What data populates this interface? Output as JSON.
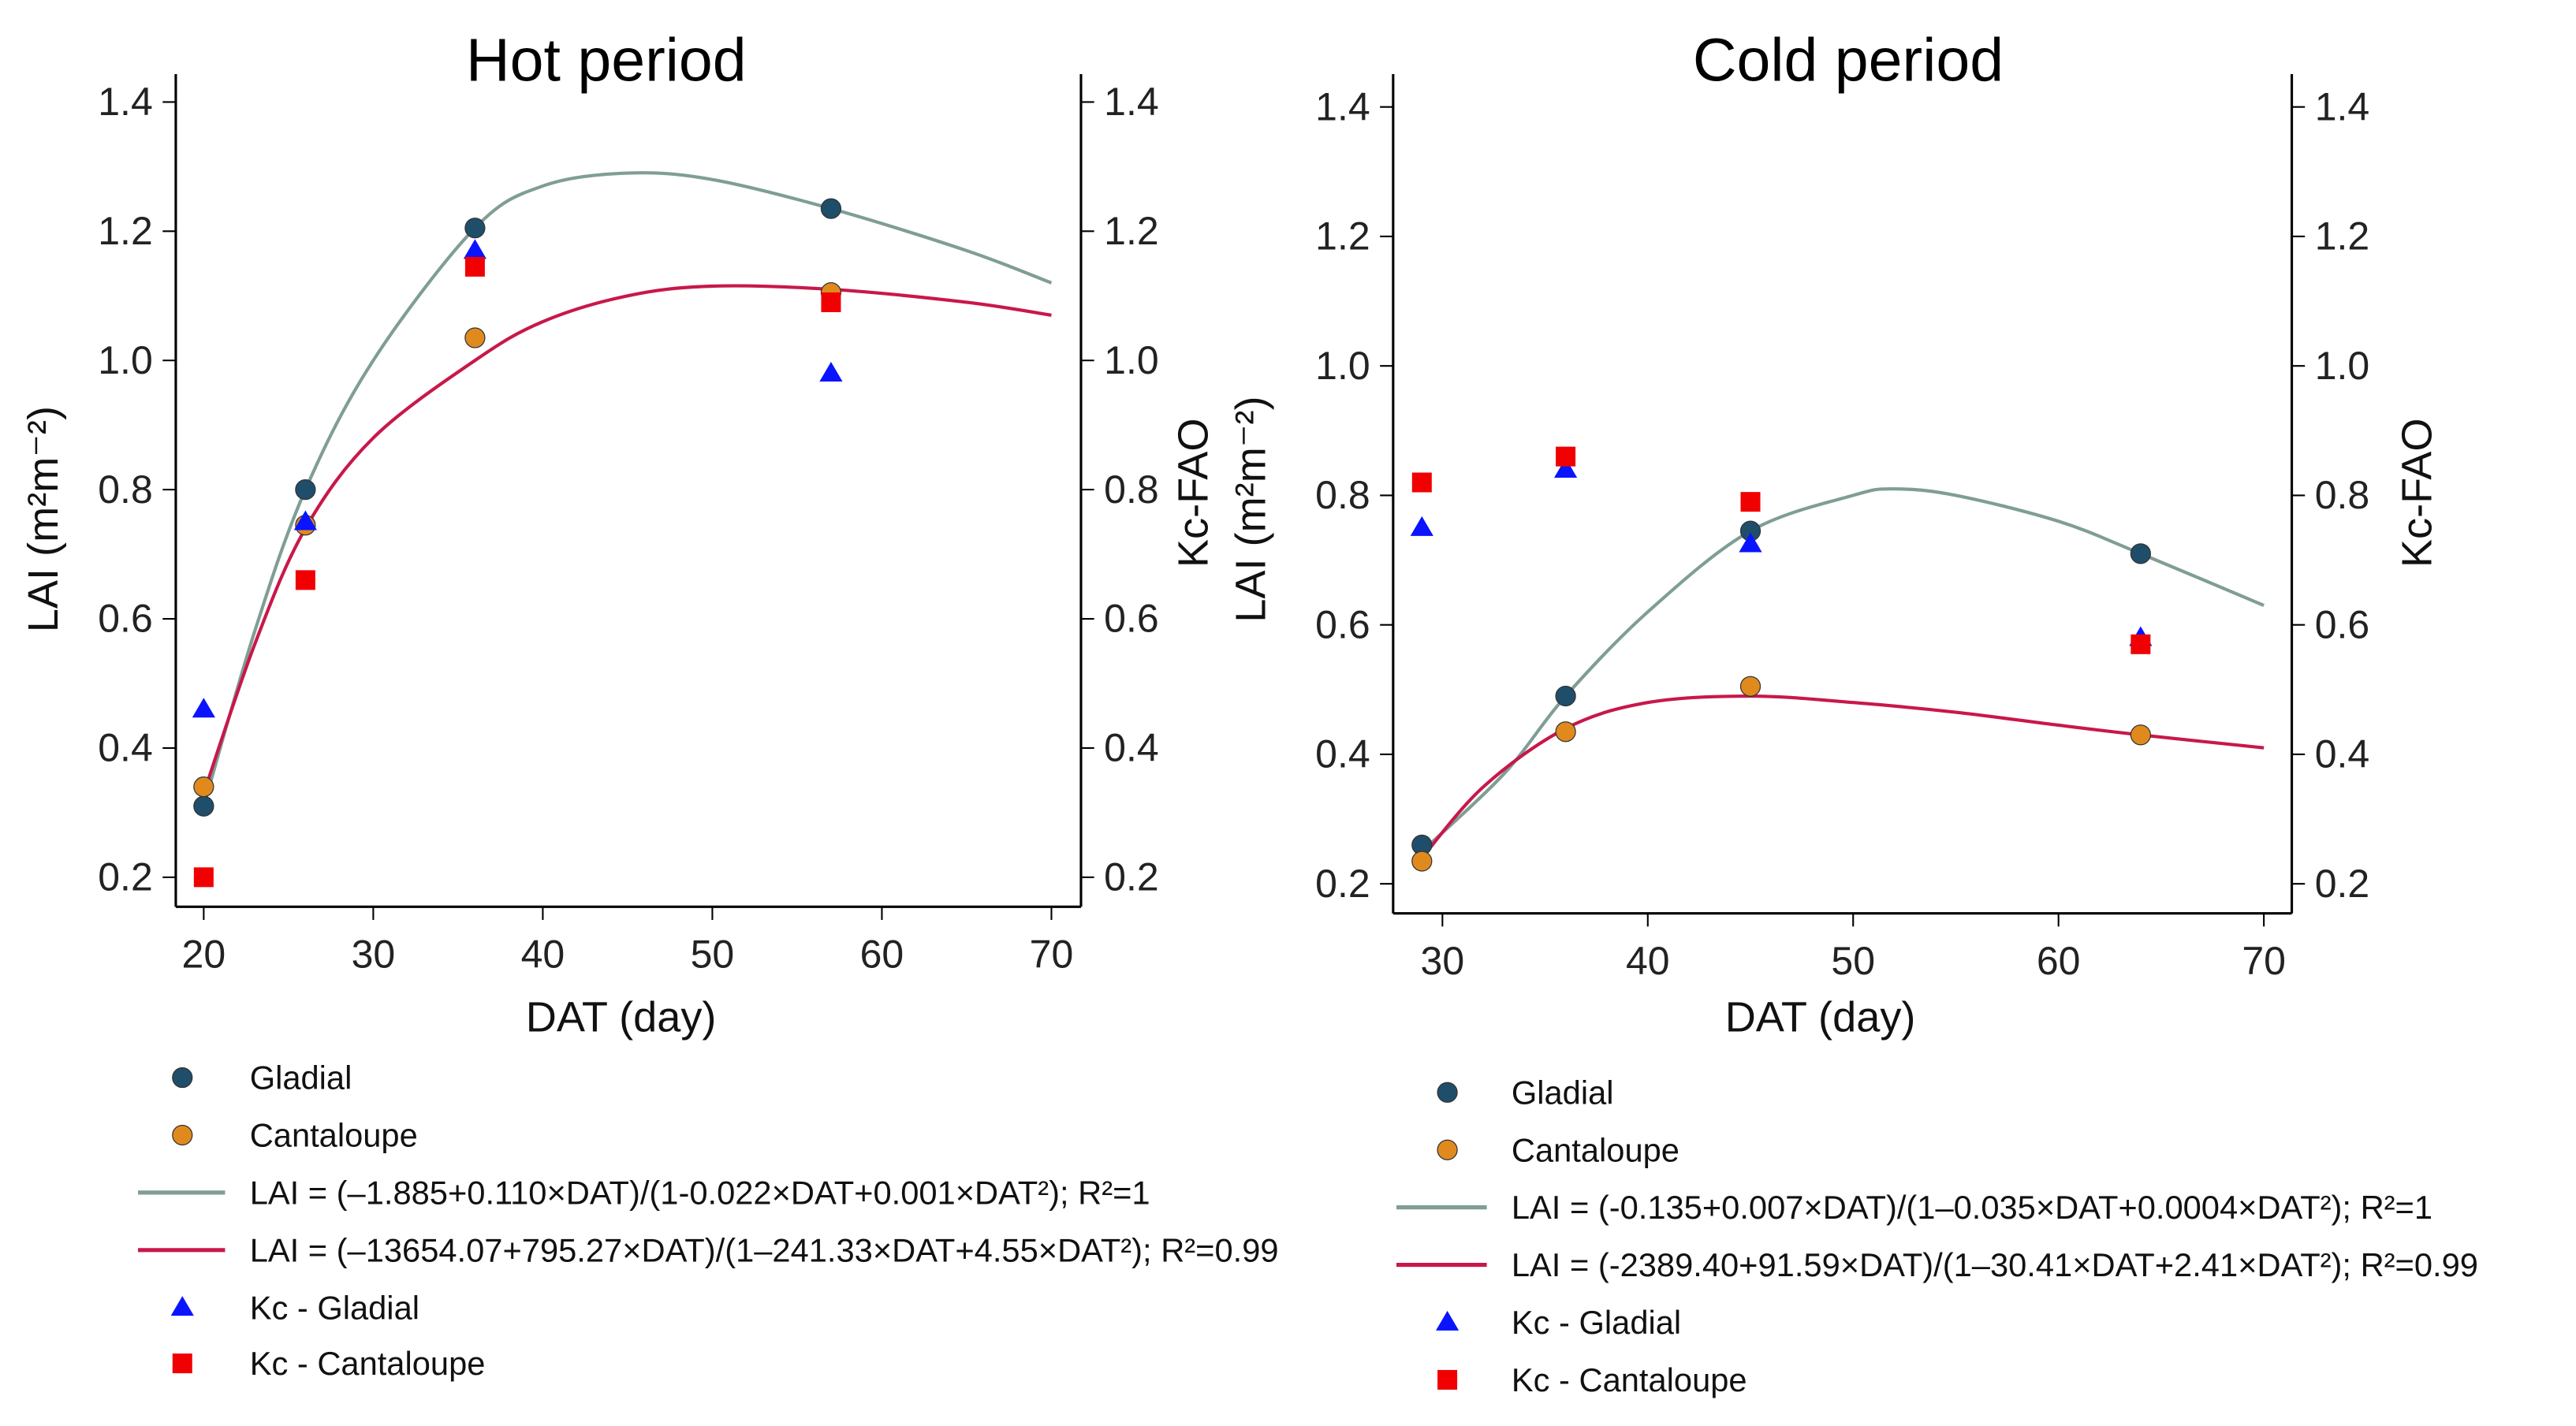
{
  "chart_data": [
    {
      "type": "scatter",
      "title": "Hot period",
      "xlabel": "DAT (day)",
      "ylabel": "LAI (m²m⁻²)",
      "y2label": "Kc-FAO",
      "xlim": [
        20,
        70
      ],
      "ylim": [
        0.2,
        1.4
      ],
      "xticks": [
        "20",
        "30",
        "40",
        "50",
        "60",
        "70"
      ],
      "yticks": [
        "0.2",
        "0.4",
        "0.6",
        "0.8",
        "1.0",
        "1.2",
        "1.4"
      ],
      "series": [
        {
          "name": "Gladial",
          "kind": "points",
          "marker": "circle",
          "color": "#1f4e6b",
          "x": [
            20,
            26,
            36,
            57
          ],
          "y": [
            0.31,
            0.8,
            1.205,
            1.235
          ]
        },
        {
          "name": "Cantaloupe",
          "kind": "points",
          "marker": "circle",
          "color": "#e08a1e",
          "x": [
            20,
            26,
            36,
            57
          ],
          "y": [
            0.34,
            0.745,
            1.035,
            1.105
          ]
        },
        {
          "name": "LAI = (–1.885+0.110×DAT)/(1-0.022×DAT+0.001×DAT²); R²=1",
          "kind": "line",
          "color": "#7f9e95",
          "x": [
            20,
            23,
            26,
            30,
            36,
            40,
            45,
            50,
            57,
            65,
            70
          ],
          "y": [
            0.31,
            0.58,
            0.8,
            1.0,
            1.205,
            1.27,
            1.29,
            1.28,
            1.235,
            1.17,
            1.12
          ]
        },
        {
          "name": "LAI = (–13654.07+795.27×DAT)/(1–241.33×DAT+4.55×DAT²); R²=0.99",
          "kind": "line",
          "color": "#c8184a",
          "x": [
            20,
            23,
            26,
            30,
            36,
            40,
            45,
            50,
            57,
            65,
            70
          ],
          "y": [
            0.33,
            0.56,
            0.74,
            0.88,
            1.0,
            1.06,
            1.1,
            1.115,
            1.11,
            1.09,
            1.07
          ]
        },
        {
          "name": "Kc - Gladial",
          "kind": "points",
          "marker": "triangle",
          "color": "#0a14ff",
          "x": [
            20,
            26,
            36,
            57
          ],
          "y": [
            0.46,
            0.75,
            1.17,
            0.98
          ]
        },
        {
          "name": "Kc - Cantaloupe",
          "kind": "points",
          "marker": "square",
          "color": "#f00000",
          "x": [
            20,
            26,
            36,
            57
          ],
          "y": [
            0.2,
            0.66,
            1.145,
            1.09
          ]
        }
      ]
    },
    {
      "type": "scatter",
      "title": "Cold period",
      "xlabel": "DAT (day)",
      "ylabel": "LAI (m²m⁻²)",
      "y2label": "Kc-FAO",
      "xlim": [
        30,
        70
      ],
      "ylim": [
        0.2,
        1.4
      ],
      "xticks": [
        "30",
        "40",
        "50",
        "60",
        "70"
      ],
      "yticks": [
        "0.2",
        "0.4",
        "0.6",
        "0.8",
        "1.0",
        "1.2",
        "1.4"
      ],
      "series": [
        {
          "name": "Gladial",
          "kind": "points",
          "marker": "circle",
          "color": "#1f4e6b",
          "x": [
            29,
            36,
            45,
            64
          ],
          "y": [
            0.26,
            0.49,
            0.745,
            0.71
          ]
        },
        {
          "name": "Cantaloupe",
          "kind": "points",
          "marker": "circle",
          "color": "#e08a1e",
          "x": [
            29,
            36,
            45,
            64
          ],
          "y": [
            0.235,
            0.435,
            0.505,
            0.43
          ]
        },
        {
          "name": "LAI = (-0.135+0.007×DAT)/(1–0.035×DAT+0.0004×DAT²); R²=1",
          "kind": "line",
          "color": "#7f9e95",
          "x": [
            29,
            33,
            36,
            40,
            45,
            50,
            52,
            55,
            60,
            64,
            70
          ],
          "y": [
            0.25,
            0.37,
            0.49,
            0.62,
            0.745,
            0.8,
            0.81,
            0.8,
            0.76,
            0.71,
            0.63
          ]
        },
        {
          "name": "LAI = (-2389.40+91.59×DAT)/(1–30.41×DAT+2.41×DAT²); R²=0.99",
          "kind": "line",
          "color": "#c8184a",
          "x": [
            29,
            32,
            36,
            40,
            45,
            50,
            55,
            60,
            64,
            70
          ],
          "y": [
            0.24,
            0.35,
            0.44,
            0.48,
            0.49,
            0.48,
            0.465,
            0.445,
            0.43,
            0.41
          ]
        },
        {
          "name": "Kc - Gladial",
          "kind": "points",
          "marker": "triangle",
          "color": "#0a14ff",
          "x": [
            29,
            36,
            45,
            64
          ],
          "y": [
            0.75,
            0.84,
            0.725,
            0.58
          ]
        },
        {
          "name": "Kc - Cantaloupe",
          "kind": "points",
          "marker": "square",
          "color": "#f00000",
          "x": [
            29,
            36,
            45,
            64
          ],
          "y": [
            0.82,
            0.86,
            0.79,
            0.57
          ]
        }
      ]
    }
  ]
}
